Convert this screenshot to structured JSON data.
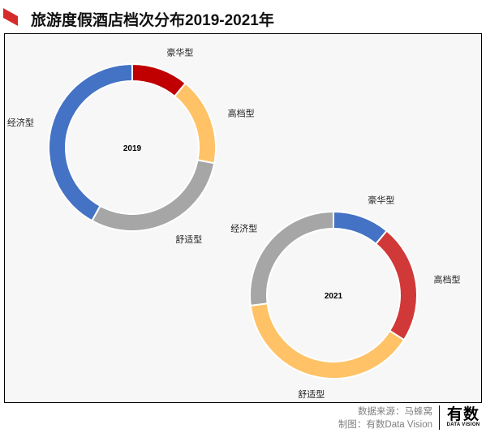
{
  "header": {
    "title": "旅游度假酒店档次分布2019-2021年",
    "accent_color": "#d62b2b"
  },
  "chart_data": [
    {
      "type": "pie",
      "variant": "donut",
      "center_label": "2019",
      "categories": [
        "豪华型",
        "高档型",
        "舒适型",
        "经济型"
      ],
      "values": [
        11,
        17,
        30,
        42
      ],
      "colors": [
        "#c00000",
        "#ffc266",
        "#a6a6a6",
        "#4472c4"
      ]
    },
    {
      "type": "pie",
      "variant": "donut",
      "center_label": "2021",
      "categories": [
        "豪华型",
        "高档型",
        "舒适型",
        "经济型"
      ],
      "values": [
        11,
        23,
        39,
        27
      ],
      "colors": [
        "#4472c4",
        "#d13838",
        "#ffc266",
        "#a6a6a6"
      ]
    }
  ],
  "footer": {
    "source": "数据来源：马蜂窝",
    "producer": "制图：有数Data Vision",
    "logo_main": "有数",
    "logo_sub": "DATA VISION"
  }
}
